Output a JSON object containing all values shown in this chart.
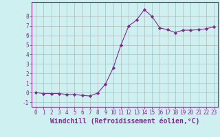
{
  "xlabel": "Windchill (Refroidissement éolien,°C)",
  "ylabel": "",
  "x_values": [
    0,
    1,
    2,
    3,
    4,
    5,
    6,
    7,
    8,
    9,
    10,
    11,
    12,
    13,
    14,
    15,
    16,
    17,
    18,
    19,
    20,
    21,
    22,
    23
  ],
  "y_values": [
    0.0,
    -0.1,
    -0.1,
    -0.1,
    -0.2,
    -0.2,
    -0.3,
    -0.35,
    -0.05,
    0.9,
    2.6,
    5.0,
    7.0,
    7.6,
    8.7,
    8.0,
    6.8,
    6.6,
    6.3,
    6.55,
    6.55,
    6.6,
    6.7,
    6.9
  ],
  "line_color": "#7b2d8b",
  "marker": "D",
  "marker_size": 2.2,
  "background_color": "#cff0f0",
  "grid_color": "#aaaaaa",
  "ylim": [
    -1.5,
    9.5
  ],
  "xlim": [
    -0.5,
    23.5
  ],
  "yticks": [
    -1,
    0,
    1,
    2,
    3,
    4,
    5,
    6,
    7,
    8
  ],
  "xticks": [
    0,
    1,
    2,
    3,
    4,
    5,
    6,
    7,
    8,
    9,
    10,
    11,
    12,
    13,
    14,
    15,
    16,
    17,
    18,
    19,
    20,
    21,
    22,
    23
  ],
  "tick_label_color": "#7b2d8b",
  "axis_label_color": "#7b2d8b",
  "spine_color": "#7b2d8b",
  "tick_fontsize": 5.5,
  "xlabel_fontsize": 7.0
}
